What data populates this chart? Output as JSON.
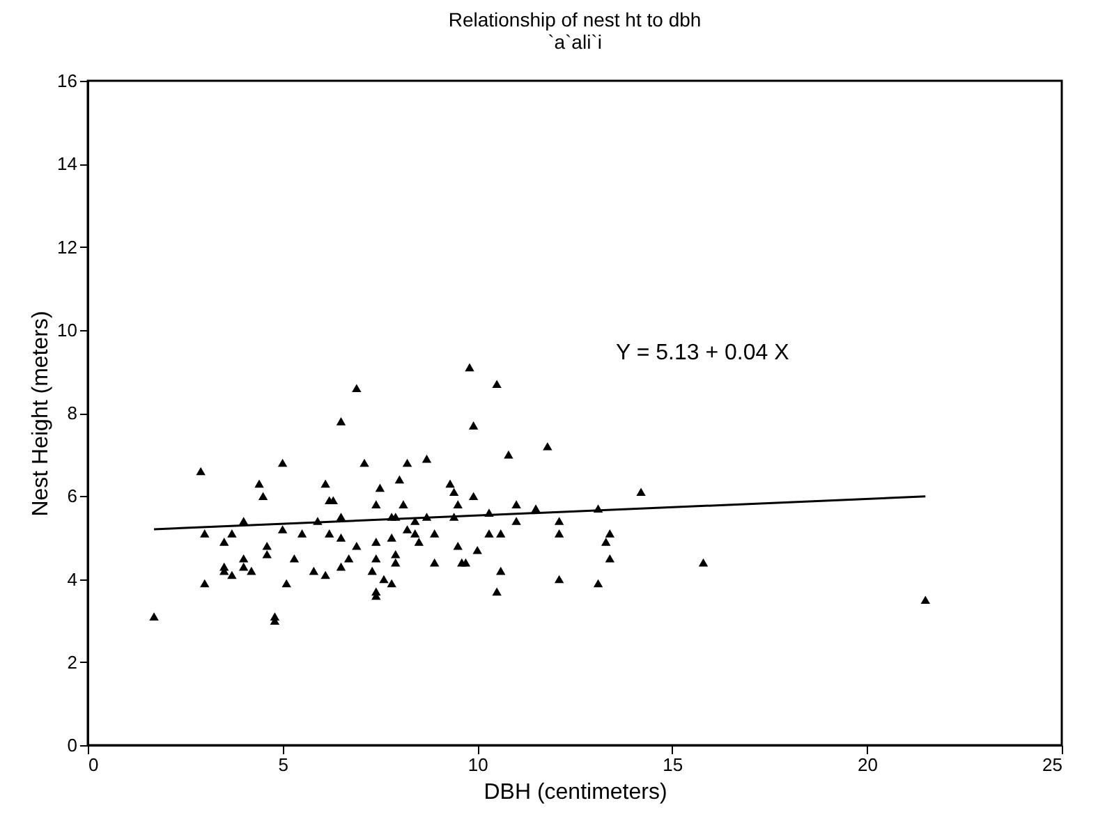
{
  "chart_data": {
    "type": "scatter",
    "title": "Relationship of nest ht to dbh",
    "subtitle": "`a`ali`i",
    "xlabel": "DBH (centimeters)",
    "ylabel": "Nest Height (meters)",
    "xlim": [
      0,
      25
    ],
    "xticks": [
      0,
      5,
      10,
      15,
      20,
      25
    ],
    "ylim": [
      0,
      16
    ],
    "yticks": [
      0,
      2,
      4,
      6,
      8,
      10,
      12,
      14,
      16
    ],
    "grid": false,
    "marker": "triangle",
    "annotations": [
      "Y = 5.13 + 0.04 X"
    ],
    "series": [
      {
        "color": "#000000",
        "x": [
          1.7,
          2.9,
          3.0,
          3.0,
          3.5,
          3.5,
          3.5,
          3.7,
          3.7,
          4.0,
          4.0,
          4.0,
          4.2,
          4.4,
          4.5,
          4.6,
          4.6,
          4.8,
          4.8,
          5.0,
          5.0,
          5.1,
          5.3,
          5.5,
          5.8,
          5.9,
          6.1,
          6.1,
          6.2,
          6.3,
          6.2,
          6.5,
          6.5,
          6.9,
          6.5,
          6.7,
          6.5,
          6.9,
          7.1,
          9.8,
          10.5,
          9.9,
          10.8,
          11.8,
          8.2,
          8.7,
          8.0,
          7.5,
          7.4,
          8.1,
          9.3,
          9.4,
          9.5,
          9.9,
          10.3,
          11.0,
          11.5,
          13.1,
          7.8,
          7.9,
          8.4,
          8.7,
          9.4,
          11.0,
          12.1,
          8.2,
          8.4,
          8.5,
          8.9,
          7.4,
          7.8,
          9.5,
          10.3,
          10.6,
          12.1,
          13.4,
          13.3,
          13.4,
          10.0,
          7.4,
          7.9,
          7.9,
          8.9,
          9.6,
          9.7,
          7.3,
          10.6,
          7.6,
          7.8,
          12.1,
          13.1,
          10.5,
          7.4,
          7.4,
          14.2,
          15.8,
          21.5
        ],
        "values": [
          3.1,
          6.6,
          3.9,
          5.1,
          4.9,
          4.3,
          4.2,
          4.1,
          5.1,
          5.4,
          4.5,
          4.3,
          4.2,
          6.3,
          6.0,
          4.8,
          4.6,
          3.1,
          3.0,
          6.8,
          5.2,
          3.9,
          4.5,
          5.1,
          4.2,
          5.4,
          6.3,
          4.1,
          5.9,
          5.9,
          5.1,
          5.5,
          5.0,
          4.8,
          4.3,
          4.5,
          7.8,
          8.6,
          6.8,
          9.1,
          8.7,
          7.7,
          7.0,
          7.2,
          6.8,
          6.9,
          6.4,
          6.2,
          5.8,
          5.8,
          6.3,
          6.1,
          5.8,
          6.0,
          5.6,
          5.8,
          5.7,
          5.7,
          5.5,
          5.5,
          5.4,
          5.5,
          5.5,
          5.4,
          5.4,
          5.2,
          5.1,
          4.9,
          5.1,
          4.9,
          5.0,
          4.8,
          5.1,
          5.1,
          5.1,
          5.1,
          4.9,
          4.5,
          4.7,
          4.5,
          4.6,
          4.4,
          4.4,
          4.4,
          4.4,
          4.2,
          4.2,
          4.0,
          3.9,
          4.0,
          3.9,
          3.7,
          3.7,
          3.6,
          6.1,
          4.4,
          3.5
        ]
      },
      {
        "type": "line",
        "color": "#000000",
        "marker": "none",
        "x": [
          1.7,
          21.5
        ],
        "values": [
          5.2,
          5.99
        ]
      }
    ]
  }
}
